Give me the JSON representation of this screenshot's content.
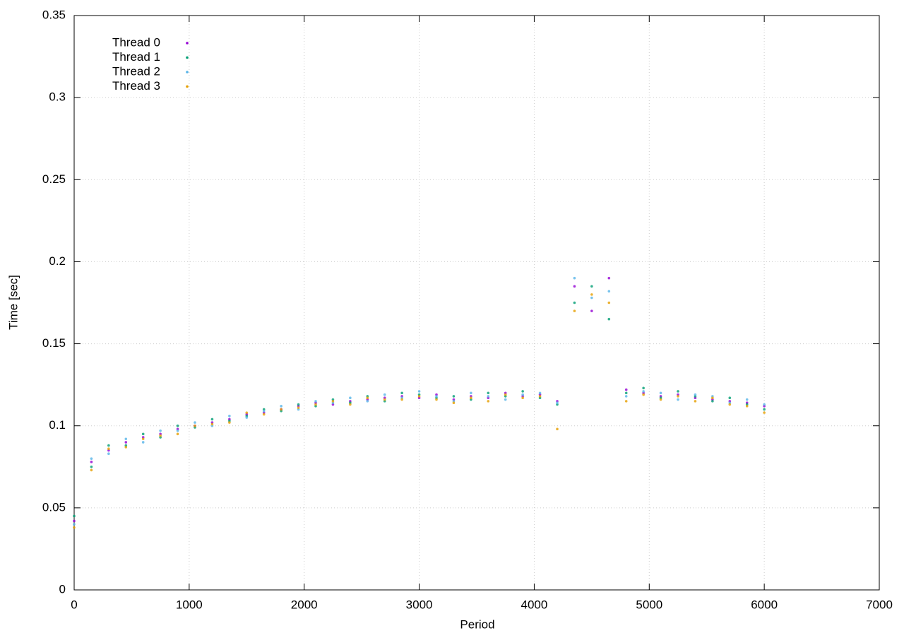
{
  "chart_data": {
    "type": "scatter",
    "x_label": "Period",
    "y_label": "Time [sec]",
    "x": [
      0,
      150,
      300,
      450,
      600,
      750,
      900,
      1050,
      1200,
      1350,
      1500,
      1650,
      1800,
      1950,
      2100,
      2250,
      2400,
      2550,
      2700,
      2850,
      3000,
      3150,
      3300,
      3450,
      3600,
      3750,
      3900,
      4050,
      4200,
      4350,
      4500,
      4650,
      4800,
      4950,
      5100,
      5250,
      5400,
      5550,
      5700,
      5850,
      6000
    ],
    "series": [
      {
        "name": "Thread 0",
        "color": "#9400d3",
        "values": [
          0.042,
          0.078,
          0.085,
          0.09,
          0.093,
          0.095,
          0.098,
          0.1,
          0.102,
          0.104,
          0.107,
          0.108,
          0.11,
          0.112,
          0.114,
          0.113,
          0.115,
          0.116,
          0.117,
          0.118,
          0.117,
          0.119,
          0.116,
          0.118,
          0.117,
          0.12,
          0.118,
          0.119,
          0.115,
          0.185,
          0.17,
          0.19,
          0.122,
          0.12,
          0.118,
          0.119,
          0.117,
          0.116,
          0.115,
          0.114,
          0.112
        ]
      },
      {
        "name": "Thread 1",
        "color": "#009e73",
        "values": [
          0.045,
          0.075,
          0.088,
          0.088,
          0.095,
          0.093,
          0.1,
          0.099,
          0.104,
          0.103,
          0.106,
          0.11,
          0.109,
          0.113,
          0.112,
          0.116,
          0.114,
          0.118,
          0.115,
          0.12,
          0.119,
          0.117,
          0.118,
          0.116,
          0.12,
          0.118,
          0.121,
          0.117,
          0.113,
          0.175,
          0.185,
          0.165,
          0.12,
          0.123,
          0.117,
          0.121,
          0.118,
          0.115,
          0.117,
          0.113,
          0.11
        ]
      },
      {
        "name": "Thread 2",
        "color": "#56b4e9",
        "values": [
          0.04,
          0.08,
          0.083,
          0.092,
          0.09,
          0.097,
          0.097,
          0.102,
          0.1,
          0.106,
          0.105,
          0.109,
          0.112,
          0.11,
          0.115,
          0.114,
          0.117,
          0.115,
          0.119,
          0.117,
          0.121,
          0.118,
          0.115,
          0.12,
          0.118,
          0.116,
          0.119,
          0.12,
          0.114,
          0.19,
          0.178,
          0.182,
          0.118,
          0.121,
          0.12,
          0.116,
          0.119,
          0.118,
          0.114,
          0.116,
          0.113
        ]
      },
      {
        "name": "Thread 3",
        "color": "#e69f00",
        "values": [
          0.038,
          0.073,
          0.086,
          0.087,
          0.092,
          0.094,
          0.095,
          0.1,
          0.101,
          0.102,
          0.108,
          0.107,
          0.11,
          0.111,
          0.113,
          0.115,
          0.113,
          0.117,
          0.116,
          0.116,
          0.118,
          0.116,
          0.114,
          0.117,
          0.115,
          0.119,
          0.117,
          0.118,
          0.098,
          0.17,
          0.18,
          0.175,
          0.115,
          0.119,
          0.116,
          0.118,
          0.115,
          0.117,
          0.113,
          0.112,
          0.108
        ]
      }
    ],
    "xlim": [
      0,
      7000
    ],
    "xticks": [
      0,
      1000,
      2000,
      3000,
      4000,
      5000,
      6000,
      7000
    ],
    "ylim": [
      0,
      0.35
    ],
    "yticks": [
      0,
      0.05,
      0.1,
      0.15,
      0.2,
      0.25,
      0.3,
      0.35
    ],
    "grid": true,
    "legend": "top-left"
  }
}
